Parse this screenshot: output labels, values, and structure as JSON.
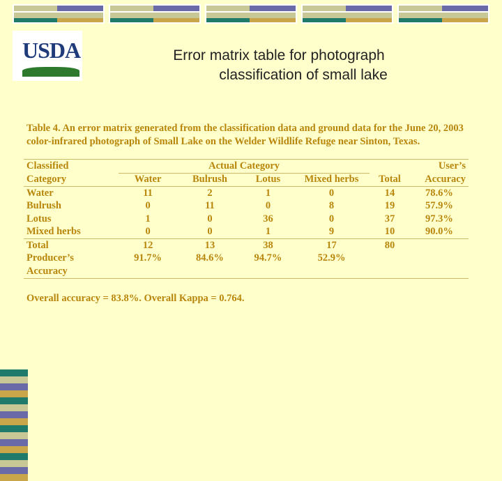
{
  "slide": {
    "title_line1": "Error matrix table for photograph",
    "title_line2": "classification of small lake"
  },
  "logo": {
    "text": "USDA"
  },
  "colors": {
    "band_light": "#c8c896",
    "band_purple": "#6a6aa8",
    "band_teal": "#1f7a6a",
    "band_gold": "#c9a64a",
    "text_gold": "#b8860b"
  },
  "table": {
    "caption": "Table 4. An error matrix generated from the classification data and ground data for the June 20, 2003 color-infrared photograph of Small Lake on the Welder Wildlife Refuge near Sinton, Texas.",
    "header": {
      "classified_line1": "Classified",
      "classified_line2": "Category",
      "actual_category": "Actual Category",
      "users_line1": "User’s",
      "users_line2": "Accuracy",
      "total": "Total",
      "columns": [
        "Water",
        "Bulrush",
        "Lotus",
        "Mixed herbs"
      ]
    },
    "rows": [
      {
        "label": "Water",
        "values": [
          "11",
          "2",
          "1",
          "0"
        ],
        "total": "14",
        "users": "78.6%"
      },
      {
        "label": "Bulrush",
        "values": [
          "0",
          "11",
          "0",
          "8"
        ],
        "total": "19",
        "users": "57.9%"
      },
      {
        "label": "Lotus",
        "values": [
          "1",
          "0",
          "36",
          "0"
        ],
        "total": "37",
        "users": "97.3%"
      },
      {
        "label": "Mixed herbs",
        "values": [
          "0",
          "0",
          "1",
          "9"
        ],
        "total": "10",
        "users": "90.0%"
      }
    ],
    "total_row": {
      "label": "Total",
      "values": [
        "12",
        "13",
        "38",
        "17"
      ],
      "total": "80"
    },
    "producers_row": {
      "label_line1": "Producer’s",
      "label_line2": "Accuracy",
      "values": [
        "91.7%",
        "84.6%",
        "94.7%",
        "52.9%"
      ]
    },
    "footer": "Overall accuracy = 83.8%.  Overall Kappa = 0.764."
  }
}
